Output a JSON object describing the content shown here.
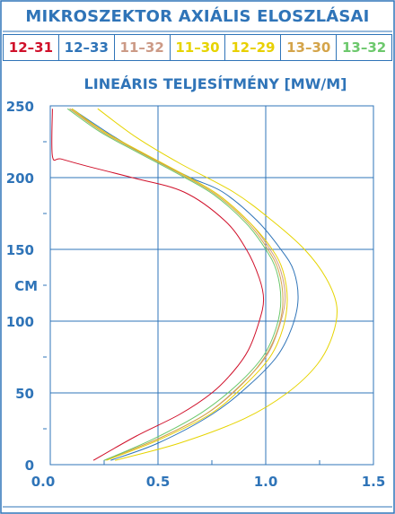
{
  "header": {
    "title": "MIKROSZEKTOR AXIÁLIS ELOSZLÁSAI"
  },
  "legend": [
    {
      "label": "12–31",
      "color": "#d0102a"
    },
    {
      "label": "12–33",
      "color": "#2f74b8"
    },
    {
      "label": "11–32",
      "color": "#cc9a86"
    },
    {
      "label": "11–30",
      "color": "#e6d400"
    },
    {
      "label": "12–29",
      "color": "#e8d000"
    },
    {
      "label": "13–30",
      "color": "#d4a44a"
    },
    {
      "label": "13–32",
      "color": "#6cc86c"
    }
  ],
  "chart_data": {
    "type": "line",
    "title": "LINEÁRIS TELJESÍTMÉNY [MW/M]",
    "ylabel": "CM",
    "xlim": [
      0,
      1.5
    ],
    "ylim": [
      0,
      250
    ],
    "x_ticks": [
      "0.0",
      "0.5",
      "1.0",
      "1.5"
    ],
    "y_ticks": [
      "0",
      "50",
      "100",
      "150",
      "200",
      "250"
    ],
    "grid": true,
    "series": [
      {
        "name": "12–31",
        "color": "#d0102a",
        "points": [
          [
            0.2,
            3
          ],
          [
            0.4,
            20
          ],
          [
            0.6,
            35
          ],
          [
            0.75,
            50
          ],
          [
            0.85,
            65
          ],
          [
            0.92,
            80
          ],
          [
            0.97,
            100
          ],
          [
            0.99,
            115
          ],
          [
            0.97,
            130
          ],
          [
            0.91,
            150
          ],
          [
            0.81,
            170
          ],
          [
            0.62,
            190
          ],
          [
            0.38,
            200
          ],
          [
            0.17,
            208
          ],
          [
            0.05,
            213
          ],
          [
            0.01,
            215
          ],
          [
            0.01,
            248
          ]
        ]
      },
      {
        "name": "12–33",
        "color": "#2f74b8",
        "points": [
          [
            0.28,
            3
          ],
          [
            0.5,
            15
          ],
          [
            0.75,
            35
          ],
          [
            0.92,
            55
          ],
          [
            1.05,
            75
          ],
          [
            1.12,
            95
          ],
          [
            1.15,
            115
          ],
          [
            1.13,
            135
          ],
          [
            1.07,
            150
          ],
          [
            0.96,
            170
          ],
          [
            0.8,
            190
          ],
          [
            0.65,
            200
          ],
          [
            0.45,
            215
          ],
          [
            0.28,
            230
          ],
          [
            0.1,
            248
          ]
        ]
      },
      {
        "name": "11–32",
        "color": "#cc9a86",
        "points": [
          [
            0.25,
            3
          ],
          [
            0.5,
            18
          ],
          [
            0.72,
            35
          ],
          [
            0.88,
            55
          ],
          [
            1.0,
            75
          ],
          [
            1.06,
            95
          ],
          [
            1.09,
            115
          ],
          [
            1.07,
            135
          ],
          [
            1.02,
            150
          ],
          [
            0.93,
            168
          ],
          [
            0.78,
            188
          ],
          [
            0.62,
            202
          ],
          [
            0.42,
            218
          ],
          [
            0.25,
            232
          ],
          [
            0.09,
            248
          ]
        ]
      },
      {
        "name": "11–30",
        "color": "#e6d400",
        "points": [
          [
            0.3,
            3
          ],
          [
            0.6,
            15
          ],
          [
            0.9,
            32
          ],
          [
            1.1,
            50
          ],
          [
            1.24,
            70
          ],
          [
            1.31,
            90
          ],
          [
            1.33,
            110
          ],
          [
            1.28,
            130
          ],
          [
            1.18,
            150
          ],
          [
            1.03,
            170
          ],
          [
            0.85,
            190
          ],
          [
            0.6,
            210
          ],
          [
            0.4,
            228
          ],
          [
            0.22,
            248
          ]
        ]
      },
      {
        "name": "12–29",
        "color": "#e8d000",
        "points": [
          [
            0.26,
            3
          ],
          [
            0.5,
            17
          ],
          [
            0.74,
            35
          ],
          [
            0.9,
            55
          ],
          [
            1.02,
            75
          ],
          [
            1.08,
            95
          ],
          [
            1.1,
            115
          ],
          [
            1.08,
            135
          ],
          [
            1.03,
            150
          ],
          [
            0.93,
            168
          ],
          [
            0.78,
            188
          ],
          [
            0.62,
            202
          ],
          [
            0.42,
            218
          ],
          [
            0.25,
            232
          ],
          [
            0.1,
            248
          ]
        ]
      },
      {
        "name": "13–30",
        "color": "#d4a44a",
        "points": [
          [
            0.25,
            3
          ],
          [
            0.5,
            18
          ],
          [
            0.73,
            36
          ],
          [
            0.89,
            56
          ],
          [
            1.0,
            76
          ],
          [
            1.06,
            96
          ],
          [
            1.08,
            115
          ],
          [
            1.06,
            135
          ],
          [
            1.01,
            150
          ],
          [
            0.92,
            168
          ],
          [
            0.77,
            188
          ],
          [
            0.61,
            202
          ],
          [
            0.41,
            218
          ],
          [
            0.24,
            232
          ],
          [
            0.09,
            248
          ]
        ]
      },
      {
        "name": "13–32",
        "color": "#6cc86c",
        "points": [
          [
            0.25,
            3
          ],
          [
            0.48,
            18
          ],
          [
            0.7,
            36
          ],
          [
            0.87,
            56
          ],
          [
            0.99,
            76
          ],
          [
            1.05,
            96
          ],
          [
            1.07,
            115
          ],
          [
            1.05,
            135
          ],
          [
            1.0,
            150
          ],
          [
            0.91,
            168
          ],
          [
            0.76,
            188
          ],
          [
            0.6,
            202
          ],
          [
            0.4,
            218
          ],
          [
            0.23,
            232
          ],
          [
            0.08,
            248
          ]
        ]
      }
    ]
  }
}
